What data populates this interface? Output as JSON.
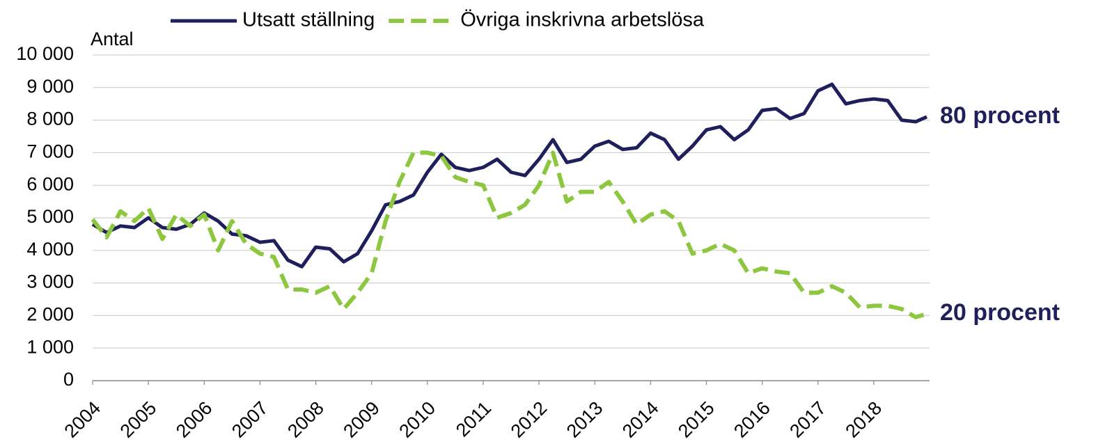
{
  "chart_data": {
    "type": "line",
    "y_label": "Antal",
    "x": [
      2004.0,
      2004.25,
      2004.5,
      2004.75,
      2005.0,
      2005.25,
      2005.5,
      2005.75,
      2006.0,
      2006.25,
      2006.5,
      2006.75,
      2007.0,
      2007.25,
      2007.5,
      2007.75,
      2008.0,
      2008.25,
      2008.5,
      2008.75,
      2009.0,
      2009.25,
      2009.5,
      2009.75,
      2010.0,
      2010.25,
      2010.5,
      2010.75,
      2011.0,
      2011.25,
      2011.5,
      2011.75,
      2012.0,
      2012.25,
      2012.5,
      2012.75,
      2013.0,
      2013.25,
      2013.5,
      2013.75,
      2014.0,
      2014.25,
      2014.5,
      2014.75,
      2015.0,
      2015.25,
      2015.5,
      2015.75,
      2016.0,
      2016.25,
      2016.5,
      2016.75,
      2017.0,
      2017.25,
      2017.5,
      2017.75,
      2018.0,
      2018.25,
      2018.5,
      2018.75,
      2018.95
    ],
    "series": [
      {
        "name": "Utsatt ställning",
        "color": "#1f1f5c",
        "dash": false,
        "values": [
          4800,
          4550,
          4750,
          4700,
          5000,
          4700,
          4650,
          4800,
          5150,
          4900,
          4500,
          4450,
          4250,
          4300,
          3700,
          3500,
          4100,
          4050,
          3650,
          3900,
          4600,
          5400,
          5500,
          5700,
          6400,
          6950,
          6550,
          6450,
          6550,
          6800,
          6400,
          6300,
          6800,
          7400,
          6700,
          6800,
          7200,
          7350,
          7100,
          7150,
          7600,
          7400,
          6800,
          7200,
          7700,
          7800,
          7400,
          7700,
          8300,
          8350,
          8050,
          8200,
          8900,
          9100,
          8500,
          8600,
          8650,
          8600,
          8000,
          7950,
          8100
        ]
      },
      {
        "name": "Övriga inskrivna arbetslösa",
        "color": "#8dc63f",
        "dash": true,
        "values": [
          4950,
          4400,
          5200,
          4900,
          5300,
          4350,
          5100,
          4750,
          5100,
          4000,
          4900,
          4200,
          3900,
          3800,
          2800,
          2800,
          2700,
          2900,
          2200,
          2700,
          3300,
          4900,
          6100,
          7000,
          7000,
          6900,
          6250,
          6100,
          6000,
          5000,
          5150,
          5400,
          6000,
          7000,
          5500,
          5800,
          5800,
          6100,
          5500,
          4800,
          5100,
          5200,
          4900,
          3900,
          4000,
          4200,
          4000,
          3300,
          3450,
          3350,
          3300,
          2700,
          2700,
          2900,
          2700,
          2250,
          2300,
          2300,
          2200,
          1950,
          2050
        ]
      }
    ],
    "annotations": [
      "80 procent",
      "20 procent"
    ],
    "xlim": [
      2004,
      2019
    ],
    "xticks": [
      2004,
      2005,
      2006,
      2007,
      2008,
      2009,
      2010,
      2011,
      2012,
      2013,
      2014,
      2015,
      2016,
      2017,
      2018
    ],
    "ylim": [
      0,
      10000
    ],
    "yticks": [
      0,
      {
        "value": 1000,
        "label": "1 000"
      },
      {
        "value": 2000,
        "label": "2 000"
      },
      {
        "value": 3000,
        "label": "3 000"
      },
      {
        "value": 4000,
        "label": "4 000"
      },
      {
        "value": 5000,
        "label": "5 000"
      },
      {
        "value": 6000,
        "label": "6 000"
      },
      {
        "value": 7000,
        "label": "7 000"
      },
      {
        "value": 8000,
        "label": "8 000"
      },
      {
        "value": 9000,
        "label": "9 000"
      },
      {
        "value": 10000,
        "label": "10 000"
      }
    ],
    "grid": true
  }
}
